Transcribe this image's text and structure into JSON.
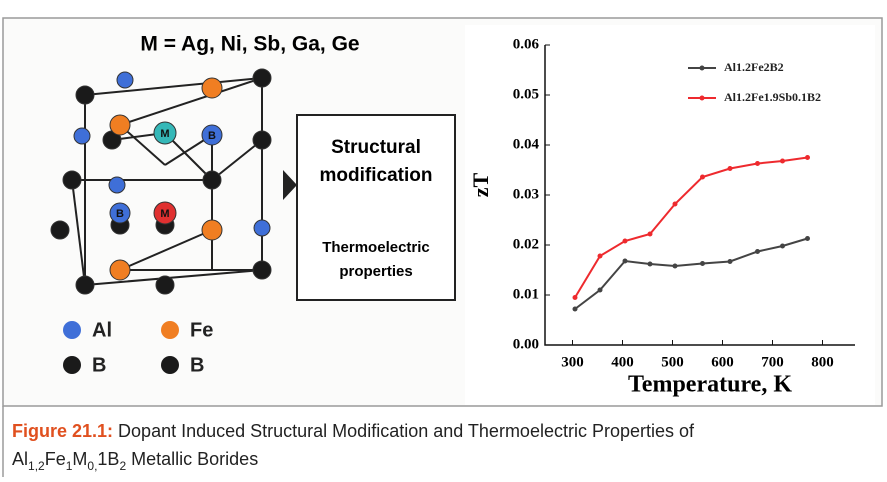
{
  "diagram": {
    "title": "M = Ag, Ni, Sb, Ga, Ge",
    "atom_labels": [
      "M",
      "B",
      "B",
      "M"
    ],
    "box_heading": "Structural modification",
    "box_text": "Thermoelectric properties",
    "legend": [
      "Al",
      "Fe",
      "B",
      "B"
    ]
  },
  "chart_data": {
    "type": "line",
    "x_label": "Temperature, K",
    "y_label": "zT",
    "x": [
      305,
      355,
      405,
      455,
      505,
      560,
      615,
      670,
      720,
      770
    ],
    "series": [
      {
        "name": "Al1.2Fe2B2",
        "color": "#444444",
        "values": [
          0.0072,
          0.011,
          0.0168,
          0.0162,
          0.0158,
          0.0163,
          0.0167,
          0.0187,
          0.0198,
          0.0213
        ]
      },
      {
        "name": "Al1.2Fe1.9Sb0.1B2",
        "color": "#ee2a2e",
        "values": [
          0.0095,
          0.0178,
          0.0208,
          0.0222,
          0.0282,
          0.0336,
          0.0353,
          0.0363,
          0.0368,
          0.0375
        ]
      }
    ],
    "xlim": [
      245,
      865
    ],
    "ylim": [
      0,
      0.06
    ],
    "xticks": [
      300,
      400,
      500,
      600,
      700,
      800
    ],
    "yticks": [
      {
        "value": 0,
        "label": "0.00"
      },
      {
        "value": 0.01,
        "label": "0.01"
      },
      {
        "value": 0.02,
        "label": "0.02"
      },
      {
        "value": 0.03,
        "label": "0.03"
      },
      {
        "value": 0.04,
        "label": "0.04"
      },
      {
        "value": 0.05,
        "label": "0.05"
      },
      {
        "value": 0.06,
        "label": "0.06"
      }
    ]
  },
  "caption": {
    "label": "Figure 21.1:",
    "line1": "Dopant Induced Structural Modification and Thermoelectric Properties of",
    "line2": [
      "Al",
      "1,2",
      "Fe",
      "1",
      "M",
      "0,",
      "1B",
      "2",
      " Metallic Borides"
    ]
  }
}
